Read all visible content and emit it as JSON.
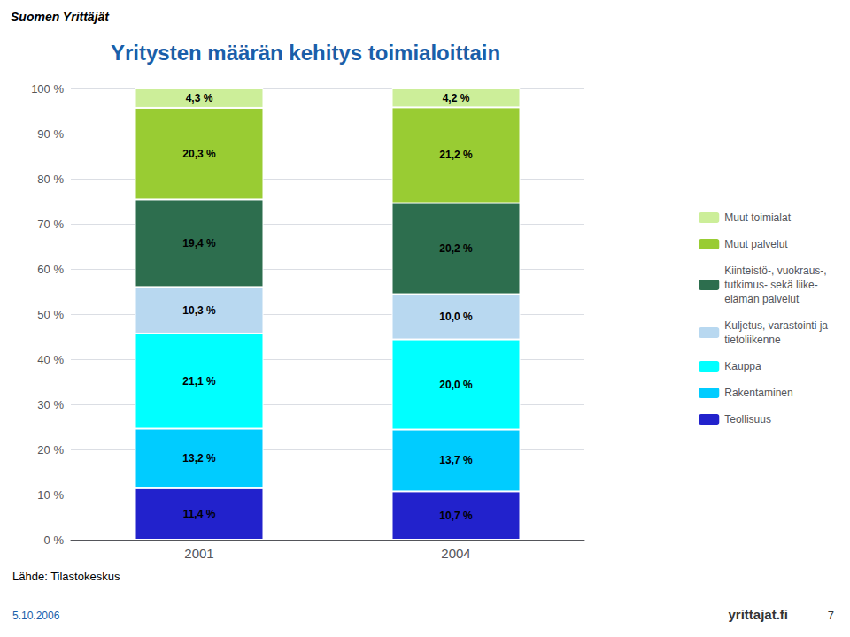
{
  "chart_data": {
    "type": "bar",
    "title": "Yritysten määrän kehitys toimialoittain",
    "categories": [
      "2001",
      "2004"
    ],
    "stacked": true,
    "data_labels": true,
    "grid": true,
    "legend": "right",
    "ylim": [
      0,
      100
    ],
    "yticks": [
      {
        "value": 0,
        "label": "0 %"
      },
      {
        "value": 10,
        "label": "10 %"
      },
      {
        "value": 20,
        "label": "20 %"
      },
      {
        "value": 30,
        "label": "30 %"
      },
      {
        "value": 40,
        "label": "40 %"
      },
      {
        "value": 50,
        "label": "50 %"
      },
      {
        "value": 60,
        "label": "60 %"
      },
      {
        "value": 70,
        "label": "70 %"
      },
      {
        "value": 80,
        "label": "80 %"
      },
      {
        "value": 90,
        "label": "90 %"
      },
      {
        "value": 100,
        "label": "100 %"
      }
    ],
    "series": [
      {
        "name": "Teollisuus",
        "color": "#2222cc",
        "values": [
          11.4,
          10.7
        ],
        "value_labels": [
          "11,4 %",
          "10,7 %"
        ]
      },
      {
        "name": "Rakentaminen",
        "color": "#00ccff",
        "values": [
          13.2,
          13.7
        ],
        "value_labels": [
          "13,2 %",
          "13,7 %"
        ]
      },
      {
        "name": "Kauppa",
        "color": "#00ffff",
        "values": [
          21.1,
          20.0
        ],
        "value_labels": [
          "21,1 %",
          "20,0 %"
        ]
      },
      {
        "name": "Kuljetus, varastointi ja\ntietoliikenne",
        "color": "#b8d8f0",
        "values": [
          10.3,
          10.0
        ],
        "value_labels": [
          "10,3 %",
          "10,0 %"
        ]
      },
      {
        "name": "Kiinteistö-, vuokraus-,\ntutkimus- sekä liike-\nelämän palvelut",
        "color": "#2d6e4e",
        "values": [
          19.4,
          20.2
        ],
        "value_labels": [
          "19,4 %",
          "20,2 %"
        ]
      },
      {
        "name": "Muut palvelut",
        "color": "#99cc33",
        "values": [
          20.3,
          21.2
        ],
        "value_labels": [
          "20,3 %",
          "21,2 %"
        ]
      },
      {
        "name": "Muut toimialat",
        "color": "#ccee99",
        "values": [
          4.3,
          4.2
        ],
        "value_labels": [
          "4,3 %",
          "4,2 %"
        ]
      }
    ],
    "annotations": [
      "Suomen Yrittäjät",
      "Lähde: Tilastokeskus",
      "5.10.2006",
      "yrittajat.fi",
      "7"
    ]
  }
}
